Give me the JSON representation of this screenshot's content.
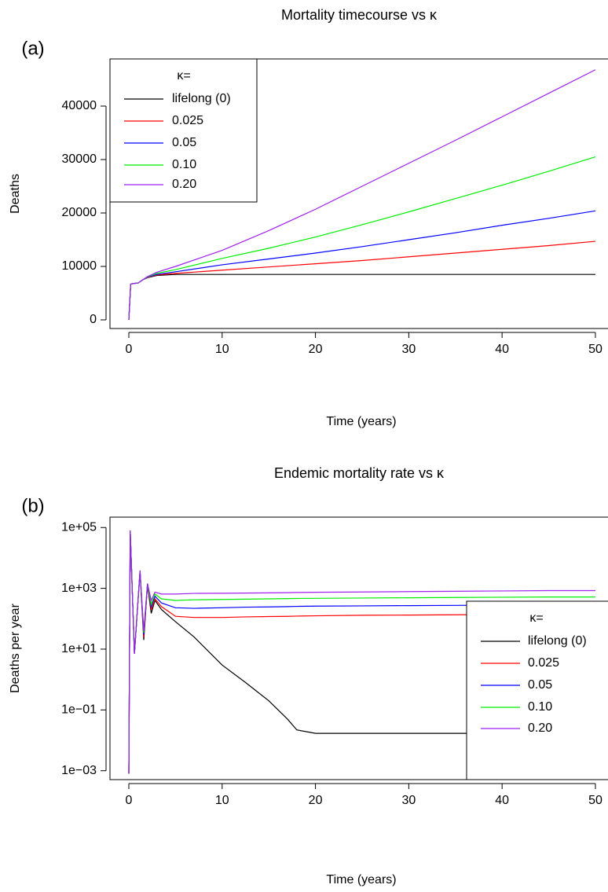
{
  "chart_data": [
    {
      "type": "line",
      "panel_label": "(a)",
      "title": "Mortality timecourse vs κ",
      "x_label": "Time (years)",
      "y_label": "Deaths",
      "x": [
        0,
        0.2,
        0.5,
        1,
        1.5,
        2,
        3,
        5,
        10,
        15,
        20,
        25,
        30,
        35,
        40,
        45,
        50
      ],
      "series": [
        {
          "name": "lifelong (0)",
          "color": "#000000",
          "values": [
            0,
            6700,
            6800,
            6900,
            7500,
            7900,
            8300,
            8500,
            8500,
            8500,
            8500,
            8500,
            8500,
            8500,
            8500,
            8500,
            8500
          ]
        },
        {
          "name": "0.025",
          "color": "#ff0000",
          "values": [
            0,
            6700,
            6800,
            6900,
            7500,
            7950,
            8400,
            8700,
            9300,
            9900,
            10500,
            11100,
            11800,
            12500,
            13200,
            13900,
            14700
          ]
        },
        {
          "name": "0.05",
          "color": "#0000ff",
          "values": [
            0,
            6700,
            6800,
            6900,
            7500,
            8000,
            8500,
            9000,
            10300,
            11400,
            12500,
            13700,
            15000,
            16300,
            17700,
            19000,
            20400
          ]
        },
        {
          "name": "0.10",
          "color": "#00ee00",
          "values": [
            0,
            6700,
            6800,
            6900,
            7500,
            8050,
            8700,
            9400,
            11500,
            13400,
            15500,
            17800,
            20200,
            22700,
            25200,
            27800,
            30500
          ]
        },
        {
          "name": "0.20",
          "color": "#a020f0",
          "values": [
            0,
            6700,
            6800,
            6900,
            7500,
            8100,
            8900,
            10000,
            13000,
            16700,
            20700,
            25000,
            29300,
            33600,
            38000,
            42400,
            46800
          ]
        }
      ],
      "legend_title": "κ=",
      "legend": "top-left",
      "xlim": [
        -2.02,
        51.35
      ],
      "xticks": [
        0,
        10,
        20,
        30,
        40,
        50
      ],
      "ylim": [
        -1618,
        48824
      ],
      "yticks": [
        0,
        10000,
        20000,
        30000,
        40000
      ],
      "log_y": false
    },
    {
      "type": "line",
      "panel_label": "(b)",
      "title": "Endemic mortality rate vs κ",
      "x_label": "Time (years)",
      "y_label": "Deaths per year",
      "x": [
        0,
        0.15,
        0.6,
        1.2,
        1.6,
        2,
        2.4,
        2.8,
        3.5,
        5,
        7,
        10,
        12.5,
        15,
        17,
        18,
        20,
        25,
        30,
        35,
        40,
        45,
        50
      ],
      "series": [
        {
          "name": "lifelong (0)",
          "color": "#000000",
          "values": [
            0.0008,
            80000,
            7,
            3500,
            20,
            1300,
            150,
            400,
            200,
            80,
            25,
            3,
            0.8,
            0.2,
            0.05,
            0.022,
            0.017,
            0.017,
            0.017,
            0.017,
            0.017,
            0.017,
            0.017
          ]
        },
        {
          "name": "0.025",
          "color": "#ff0000",
          "values": [
            0.0008,
            80000,
            7,
            3600,
            25,
            1300,
            200,
            450,
            250,
            120,
            110,
            110,
            115,
            118,
            120,
            122,
            125,
            130,
            132,
            135,
            138,
            140,
            140
          ]
        },
        {
          "name": "0.05",
          "color": "#0000ff",
          "values": [
            0.0008,
            80000,
            7,
            3700,
            30,
            1400,
            250,
            550,
            330,
            230,
            220,
            230,
            240,
            245,
            250,
            255,
            260,
            265,
            270,
            275,
            280,
            280,
            280
          ]
        },
        {
          "name": "0.10",
          "color": "#00ee00",
          "values": [
            0.0008,
            80000,
            7,
            3800,
            35,
            1400,
            300,
            650,
            450,
            400,
            420,
            430,
            440,
            450,
            460,
            465,
            470,
            480,
            490,
            500,
            510,
            520,
            520
          ]
        },
        {
          "name": "0.20",
          "color": "#a020f0",
          "values": [
            0.0008,
            80000,
            7,
            3900,
            40,
            1450,
            400,
            750,
            650,
            650,
            680,
            690,
            700,
            710,
            720,
            730,
            740,
            760,
            780,
            800,
            820,
            840,
            840
          ]
        }
      ],
      "legend_title": "κ=",
      "legend": "bottom-right",
      "xlim": [
        -2.02,
        51.35
      ],
      "xticks": [
        0,
        10,
        20,
        30,
        40,
        50
      ],
      "ylim": [
        0.00051,
        220000
      ],
      "yticks": [
        {
          "value": 0.001,
          "label": "1e−03"
        },
        {
          "value": 0.1,
          "label": "1e−01"
        },
        {
          "value": 10,
          "label": "1e+01"
        },
        {
          "value": 1000,
          "label": "1e+03"
        },
        {
          "value": 100000,
          "label": "1e+05"
        }
      ],
      "log_y": true
    }
  ]
}
